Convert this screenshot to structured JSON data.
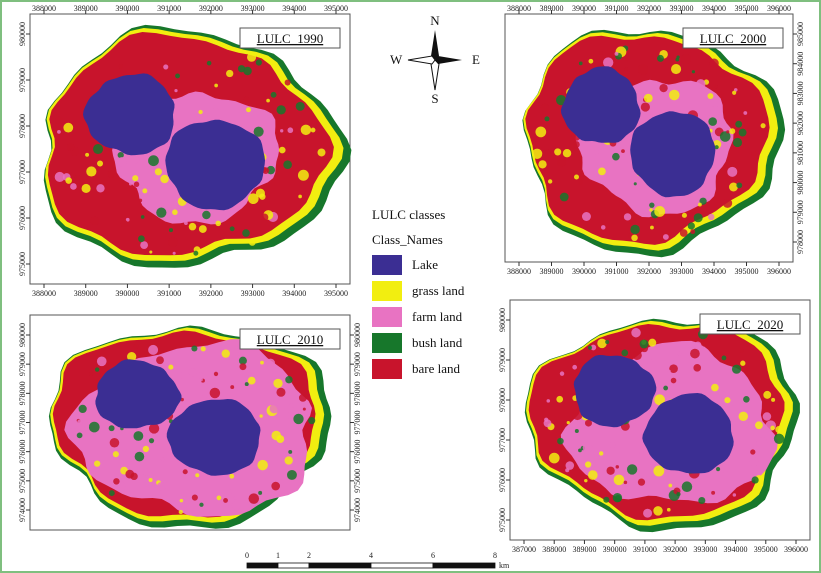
{
  "compass": {
    "north": "N",
    "east": "E",
    "south": "S",
    "west": "W"
  },
  "legend": {
    "title": "LULC classes",
    "subtitle": "Class_Names",
    "items": [
      {
        "name": "Lake",
        "color": "#3b2e93"
      },
      {
        "name": "grass land",
        "color": "#f2ee10"
      },
      {
        "name": "farm land",
        "color": "#e873c2"
      },
      {
        "name": "bush land",
        "color": "#17772b"
      },
      {
        "name": "bare land",
        "color": "#c8142c"
      }
    ]
  },
  "scale_bar": {
    "labels": [
      "0",
      "1",
      "2",
      "4",
      "6",
      "8"
    ],
    "unit": "km"
  },
  "panels": [
    {
      "title": "LULC_1990",
      "top_ticks": [
        388000,
        389000,
        390000,
        391000,
        392000,
        393000,
        394000,
        395000
      ],
      "bottom_ticks": [
        388000,
        389000,
        390000,
        391000,
        392000,
        393000,
        394000,
        395000
      ],
      "left_ticks": [
        975000,
        976000,
        977000,
        978000,
        979000,
        980000
      ]
    },
    {
      "title": "LULC_2000",
      "top_ticks": [
        388000,
        389000,
        390000,
        391000,
        392000,
        393000,
        394000,
        395000,
        396000
      ],
      "bottom_ticks": [
        388000,
        389000,
        390000,
        391000,
        392000,
        393000,
        394000,
        395000,
        396000
      ],
      "right_ticks": [
        978000,
        979000,
        980000,
        981000,
        982000,
        983000,
        984000,
        985000
      ]
    },
    {
      "title": "LULC_2010",
      "left_ticks": [
        974000,
        975000,
        976000,
        977000,
        978000,
        979000,
        980000
      ],
      "right_ticks": [
        974000,
        975000,
        976000,
        977000,
        978000,
        979000,
        980000
      ]
    },
    {
      "title": "LULC_2020",
      "left_ticks": [
        975000,
        976000,
        977000,
        978000,
        979000,
        980000
      ],
      "bottom_ticks": [
        387000,
        388000,
        389000,
        390000,
        391000,
        392000,
        393000,
        394000,
        395000,
        396000
      ]
    }
  ]
}
